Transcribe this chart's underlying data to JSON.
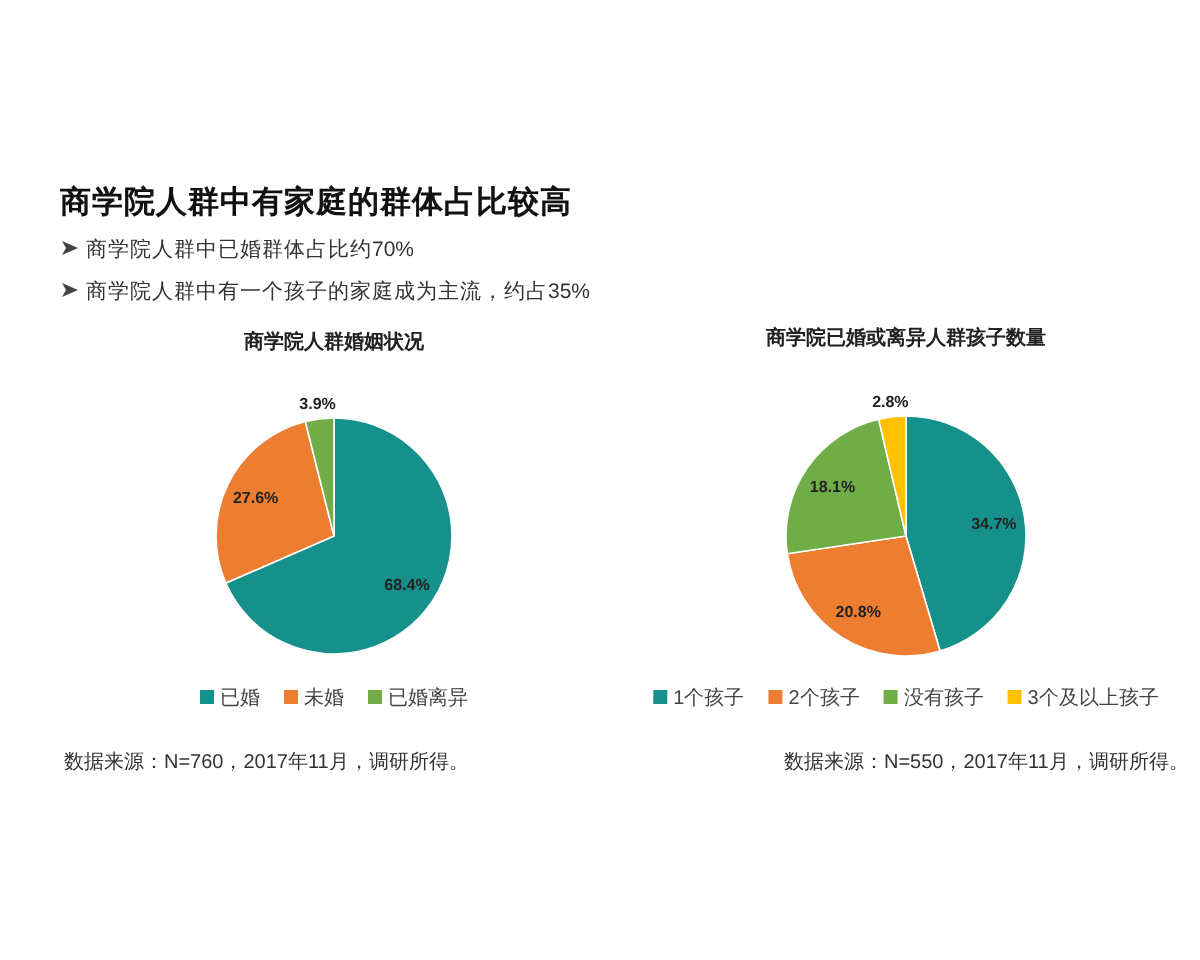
{
  "chart_data": [
    {
      "type": "other",
      "title": "商学院人群中有家庭的群体占比较高",
      "annotations": [
        "商学院人群中已婚群体占比约70%",
        "商学院人群中有一个孩子的家庭成为主流，约占35%"
      ]
    },
    {
      "type": "pie",
      "title": "商学院人群婚姻状况",
      "categories": [
        "已婚",
        "未婚",
        "已婚离异"
      ],
      "values": [
        68.4,
        27.6,
        3.9
      ],
      "colors": [
        "#15908b",
        "#ed7d31",
        "#70ad47"
      ],
      "value_labels": [
        "68.4%",
        "27.6%",
        "3.9%"
      ],
      "legend": "bottom",
      "annotations": [
        "数据来源：N=760，2017年11月，调研所得。"
      ]
    },
    {
      "type": "pie",
      "title": "商学院已婚或离异人群孩子数量",
      "categories": [
        "1个孩子",
        "2个孩子",
        "没有孩子",
        "3个及以上孩子"
      ],
      "values": [
        34.7,
        20.8,
        18.1,
        2.8
      ],
      "colors": [
        "#15908b",
        "#ed7d31",
        "#70ad47",
        "#ffc000"
      ],
      "value_labels": [
        "34.7%",
        "20.8%",
        "18.1%",
        "2.8%"
      ],
      "legend": "bottom",
      "annotations": [
        "数据来源：N=550，2017年11月，调研所得。"
      ]
    }
  ]
}
